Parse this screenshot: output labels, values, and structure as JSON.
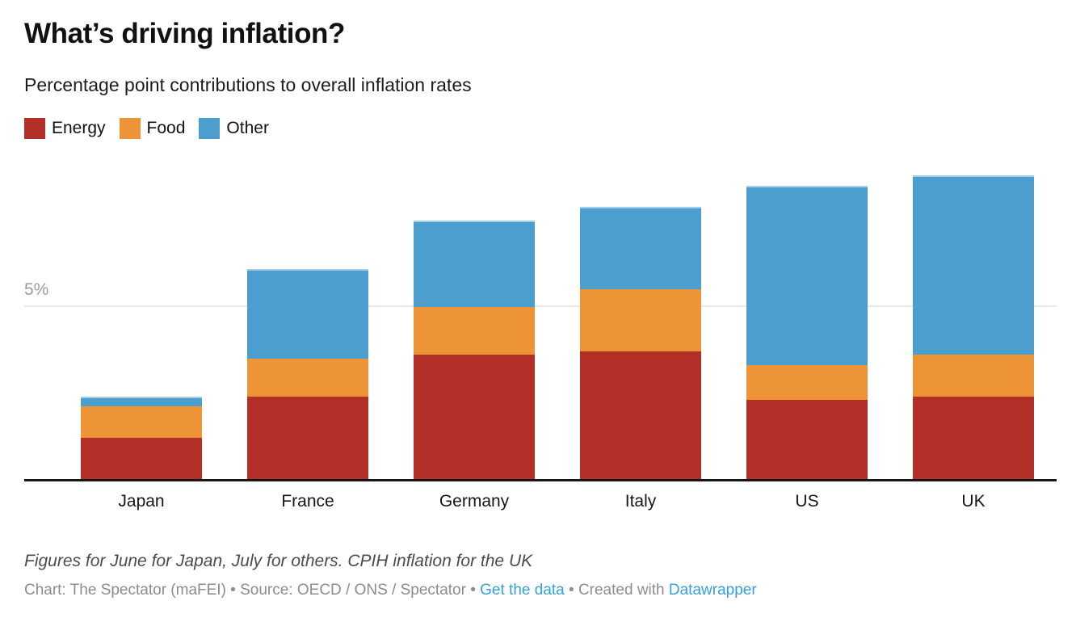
{
  "chart_data": {
    "type": "bar",
    "stacked": true,
    "title": "What’s driving inflation?",
    "subtitle": "Percentage point contributions to overall inflation rates",
    "categories": [
      "Japan",
      "France",
      "Germany",
      "Italy",
      "US",
      "UK"
    ],
    "series": [
      {
        "name": "Energy",
        "color": "#b23028",
        "values": [
          1.2,
          2.4,
          3.6,
          3.7,
          2.3,
          2.4
        ]
      },
      {
        "name": "Food",
        "color": "#ec9436",
        "values": [
          0.9,
          1.1,
          1.4,
          1.8,
          1.0,
          1.2
        ]
      },
      {
        "name": "Other",
        "color": "#4b9ecd",
        "values": [
          0.3,
          2.6,
          2.5,
          2.4,
          5.2,
          5.2
        ]
      }
    ],
    "totals": [
      2.4,
      6.1,
      7.5,
      7.9,
      8.5,
      8.8
    ],
    "unit": "percentage points",
    "ylim": [
      0,
      8.9
    ],
    "y_gridlines": [
      {
        "value": 5,
        "label": "5%"
      }
    ],
    "legend_position": "top-left",
    "grid": "single horizontal gridline at 5%"
  },
  "legend": {
    "items": [
      {
        "label": "Energy",
        "color": "#b23028"
      },
      {
        "label": "Food",
        "color": "#ec9436"
      },
      {
        "label": "Other",
        "color": "#4b9ecd"
      }
    ]
  },
  "footer": {
    "note": "Figures for June for Japan, July for others. CPIH inflation for the UK",
    "attribution": {
      "prefix": "Chart: The Spectator (maFEI) • Source: OECD / ONS / Spectator • ",
      "link_get_data": "Get the data",
      "middle": " • Created with ",
      "link_datawrapper": "Datawrapper"
    },
    "link_color": "#36a1d9"
  }
}
